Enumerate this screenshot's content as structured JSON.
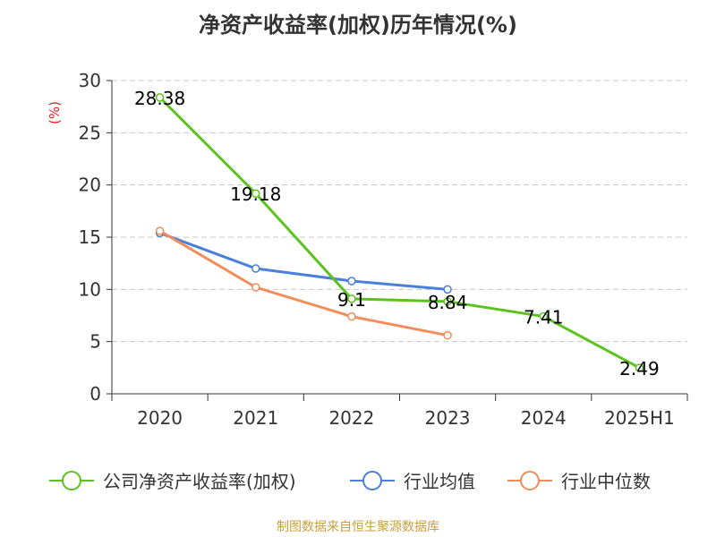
{
  "chart_data": {
    "type": "line",
    "title": "净资产收益率(加权)历年情况(%)",
    "ylabel": "(%)",
    "xlabel": "",
    "categories": [
      "2020",
      "2021",
      "2022",
      "2023",
      "2024",
      "2025H1"
    ],
    "ylim": [
      0,
      30
    ],
    "yticks": [
      0,
      5,
      10,
      15,
      20,
      25,
      30
    ],
    "grid": true,
    "legend_position": "bottom",
    "series": [
      {
        "name": "公司净资产收益率(加权)",
        "color": "#5bc21e",
        "values": [
          28.38,
          19.18,
          9.1,
          8.84,
          7.41,
          2.49
        ],
        "labels": [
          "28.38",
          "19.18",
          "9.1",
          "8.84",
          "7.41",
          "2.49"
        ]
      },
      {
        "name": "行业均值",
        "color": "#4a7fdc",
        "values": [
          15.4,
          12.0,
          10.8,
          10.0,
          null,
          null
        ]
      },
      {
        "name": "行业中位数",
        "color": "#f28c5a",
        "values": [
          15.6,
          10.2,
          7.4,
          5.6,
          null,
          null
        ]
      }
    ]
  },
  "source": "制图数据来自恒生聚源数据库"
}
